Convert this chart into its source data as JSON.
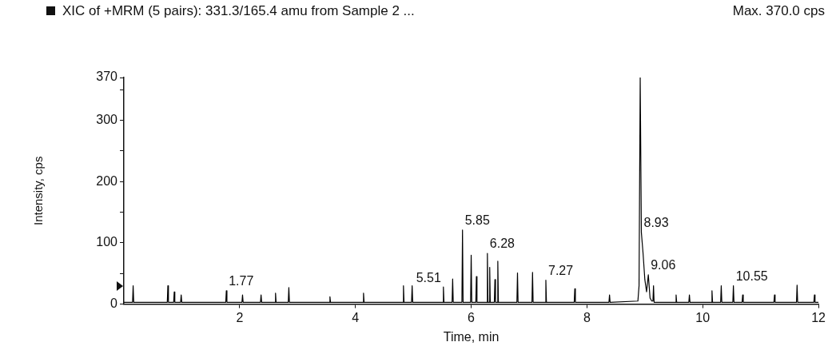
{
  "chart_data": {
    "type": "line",
    "title": "XIC of +MRM (5 pairs): 331.3/165.4 amu from Sample 2 ...",
    "subtitle": "Max. 370.0 cps",
    "xlabel": "Time, min",
    "ylabel": "Intensity, cps",
    "xlim": [
      0,
      12
    ],
    "xticks": [
      2,
      4,
      6,
      8,
      10,
      12
    ],
    "ylim": [
      0,
      370
    ],
    "yticks": [
      0,
      {
        "value": 50,
        "label": null
      },
      100,
      {
        "value": 150,
        "label": null
      },
      200,
      {
        "value": 250,
        "label": null
      },
      300,
      {
        "value": 350,
        "label": null
      },
      370
    ],
    "grid": false,
    "legend": false,
    "marker": "none",
    "line_style": "solid",
    "series": [
      {
        "color": "#000000",
        "x": [
          0,
          0.15,
          0.16,
          0.17,
          0.75,
          0.76,
          0.77,
          0.86,
          0.87,
          0.88,
          0.98,
          0.99,
          1.0,
          1.76,
          1.77,
          1.78,
          2.04,
          2.05,
          2.06,
          2.36,
          2.37,
          2.38,
          2.61,
          2.62,
          2.63,
          2.84,
          2.85,
          2.86,
          3.55,
          3.56,
          3.57,
          4.13,
          4.14,
          4.15,
          4.82,
          4.83,
          4.84,
          4.97,
          4.98,
          4.99,
          5.51,
          5.52,
          5.53,
          5.67,
          5.68,
          5.69,
          5.84,
          5.85,
          5.86,
          5.99,
          6.0,
          6.01,
          6.08,
          6.09,
          6.1,
          6.27,
          6.28,
          6.29,
          6.31,
          6.32,
          6.33,
          6.4,
          6.41,
          6.42,
          6.45,
          6.46,
          6.47,
          6.79,
          6.8,
          6.81,
          7.05,
          7.06,
          7.07,
          7.28,
          7.29,
          7.3,
          7.78,
          7.79,
          7.8,
          8.38,
          8.39,
          8.4,
          8.88,
          8.9,
          8.92,
          8.94,
          8.97,
          9.0,
          9.03,
          9.06,
          9.09,
          9.12,
          9.14,
          9.15,
          9.16,
          9.53,
          9.54,
          9.55,
          9.76,
          9.77,
          9.78,
          10.15,
          10.16,
          10.17,
          10.31,
          10.32,
          10.33,
          10.52,
          10.53,
          10.54,
          10.68,
          10.69,
          10.7,
          11.23,
          11.24,
          11.25,
          11.62,
          11.63,
          11.64,
          11.92,
          11.93,
          11.94,
          12
        ],
        "values": [
          3,
          3,
          30,
          3,
          3,
          30,
          3,
          3,
          20,
          3,
          3,
          15,
          3,
          3,
          22,
          3,
          3,
          15,
          3,
          3,
          15,
          3,
          3,
          18,
          3,
          3,
          27,
          3,
          3,
          12,
          3,
          3,
          18,
          3,
          3,
          30,
          3,
          3,
          30,
          3,
          3,
          28,
          3,
          3,
          41,
          3,
          3,
          121,
          3,
          3,
          80,
          3,
          3,
          45,
          3,
          3,
          83,
          3,
          3,
          60,
          3,
          3,
          40,
          3,
          3,
          70,
          3,
          3,
          51,
          3,
          3,
          52,
          3,
          3,
          39,
          3,
          3,
          25,
          3,
          3,
          15,
          3,
          5,
          30,
          370,
          117,
          82,
          40,
          20,
          48,
          10,
          5,
          5,
          30,
          3,
          3,
          15,
          3,
          3,
          15,
          3,
          3,
          22,
          3,
          3,
          30,
          3,
          3,
          30,
          3,
          3,
          15,
          3,
          3,
          15,
          3,
          3,
          31,
          3,
          3,
          15,
          3,
          3
        ]
      }
    ],
    "annotations": [
      {
        "text": "1.77",
        "x": 1.77,
        "y": 22
      },
      {
        "text": "5.51",
        "x": 5.52,
        "y": 28
      },
      {
        "text": "5.85",
        "x": 5.85,
        "y": 121
      },
      {
        "text": "6.28",
        "x": 6.28,
        "y": 83
      },
      {
        "text": "7.27",
        "x": 7.29,
        "y": 39
      },
      {
        "text": "8.93",
        "x": 8.94,
        "y": 117
      },
      {
        "text": "9.06",
        "x": 9.06,
        "y": 48
      },
      {
        "text": "10.55",
        "x": 10.53,
        "y": 30
      }
    ]
  }
}
